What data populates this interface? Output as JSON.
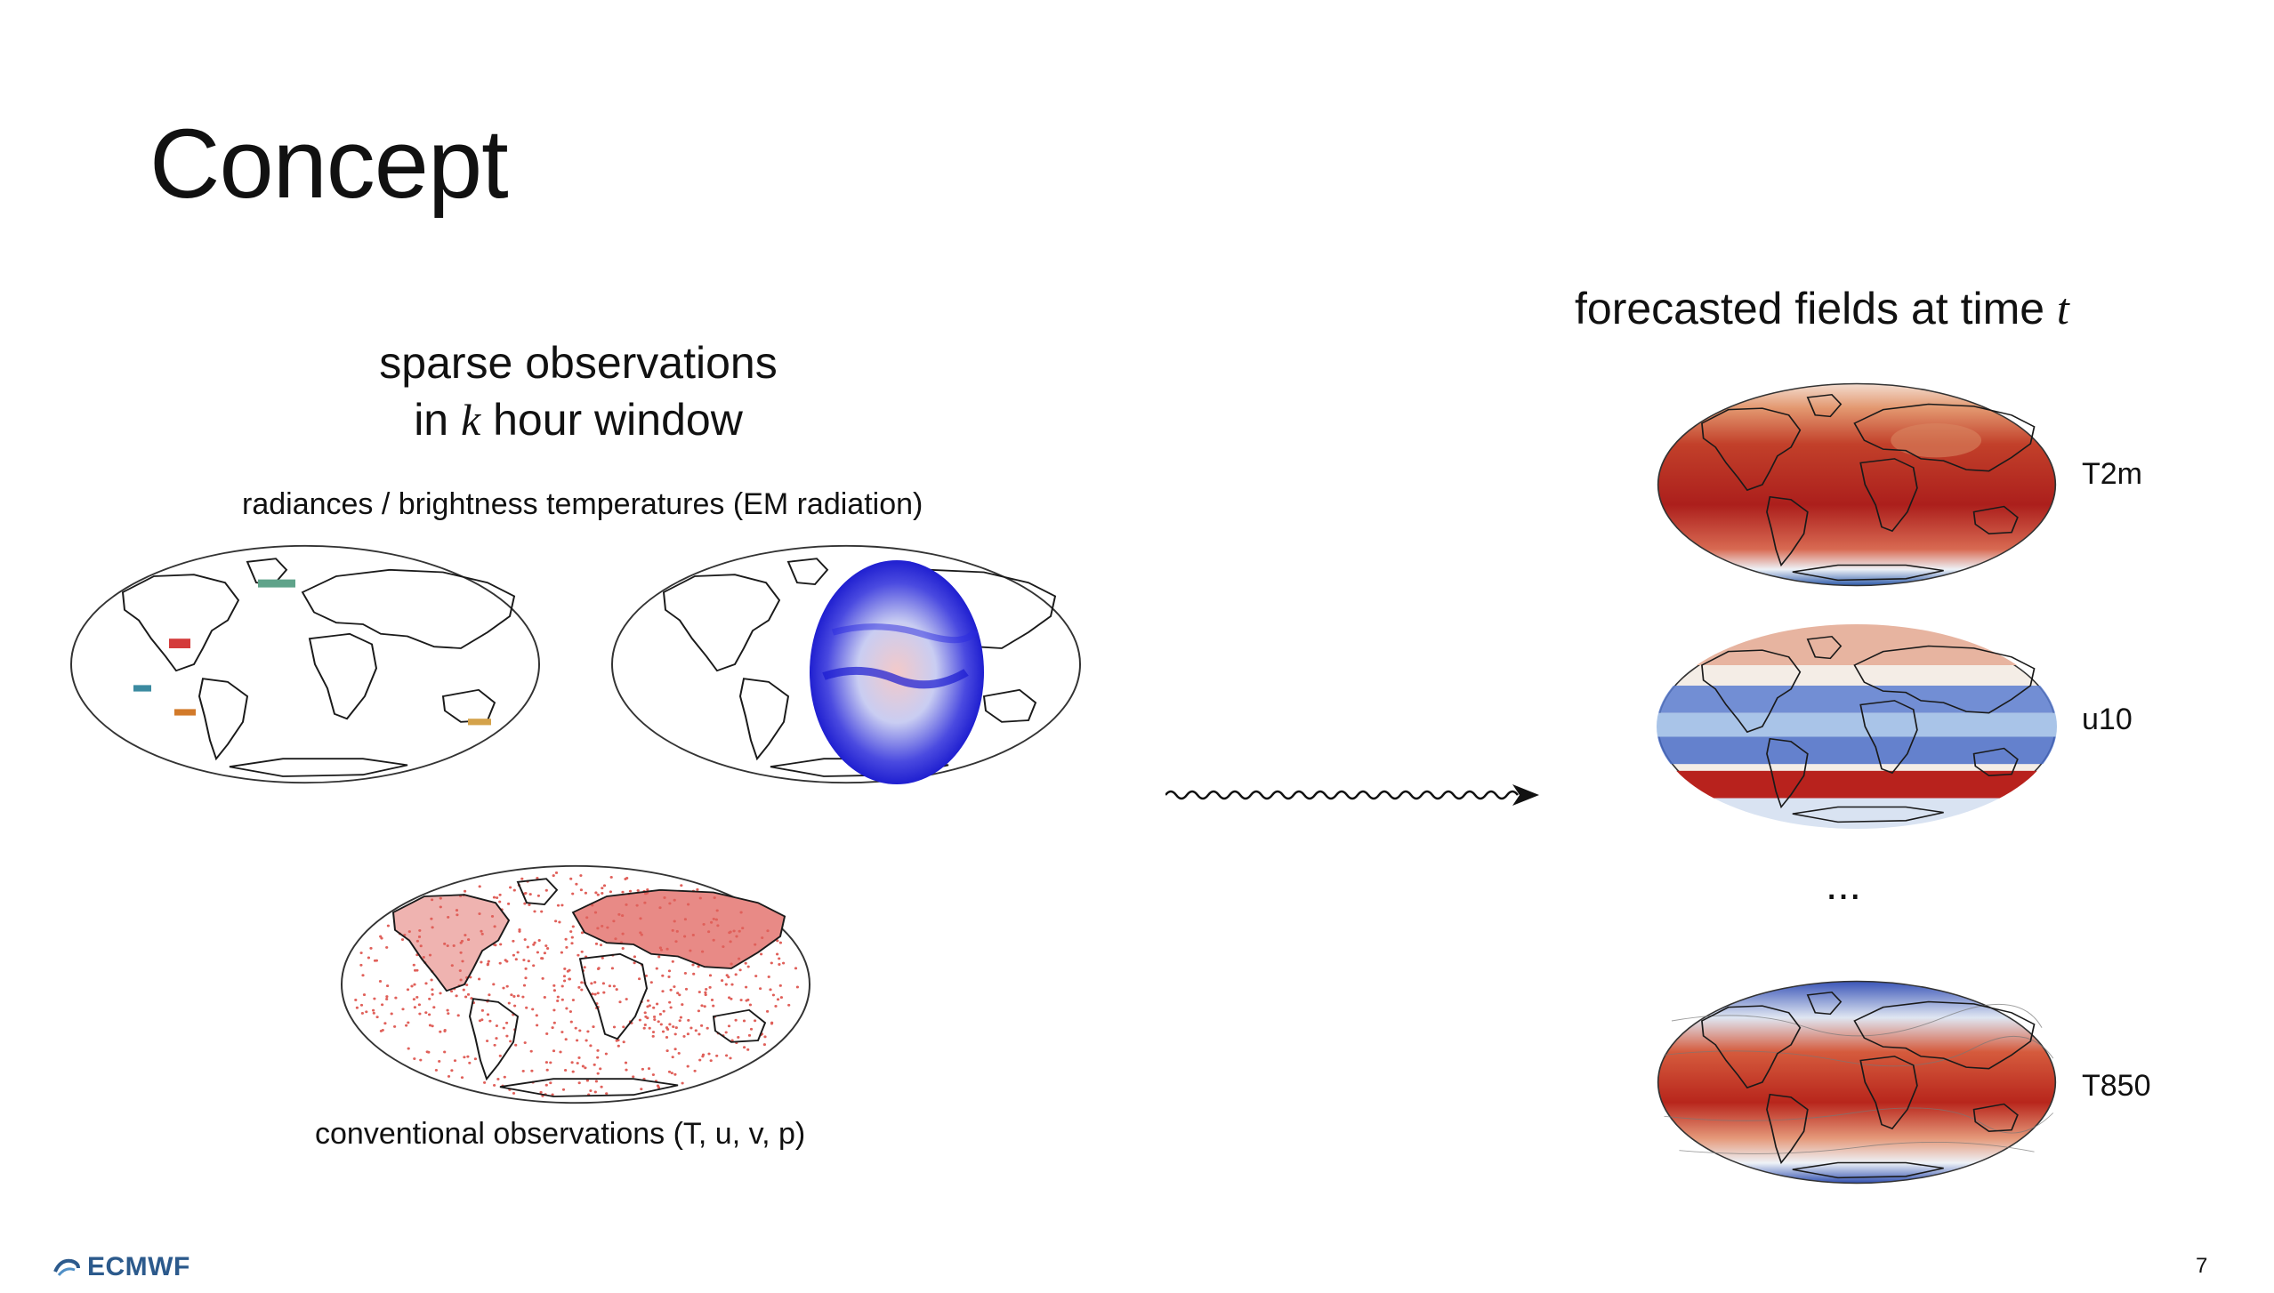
{
  "slide": {
    "title": "Concept",
    "left_heading": {
      "line1": "sparse observations",
      "line2_prefix": "in ",
      "line2_var": "k",
      "line2_suffix": " hour window"
    },
    "right_heading": {
      "prefix": "forecasted fields at time ",
      "var": "t"
    },
    "radiances_caption": "radiances / brightness temperatures (EM radiation)",
    "conventional_caption": "conventional observations (T, u, v, p)",
    "field_labels": [
      "T2m",
      "u10",
      "T850"
    ],
    "ellipsis": "...",
    "slide_number": "7",
    "logo_text": "ECMWF"
  },
  "colors": {
    "warm": "#b5241b",
    "cold": "#2a4fbf",
    "satellite_blue": "#2323d6",
    "obs_red": "#e0605a",
    "logo": "#2c5a8c"
  }
}
